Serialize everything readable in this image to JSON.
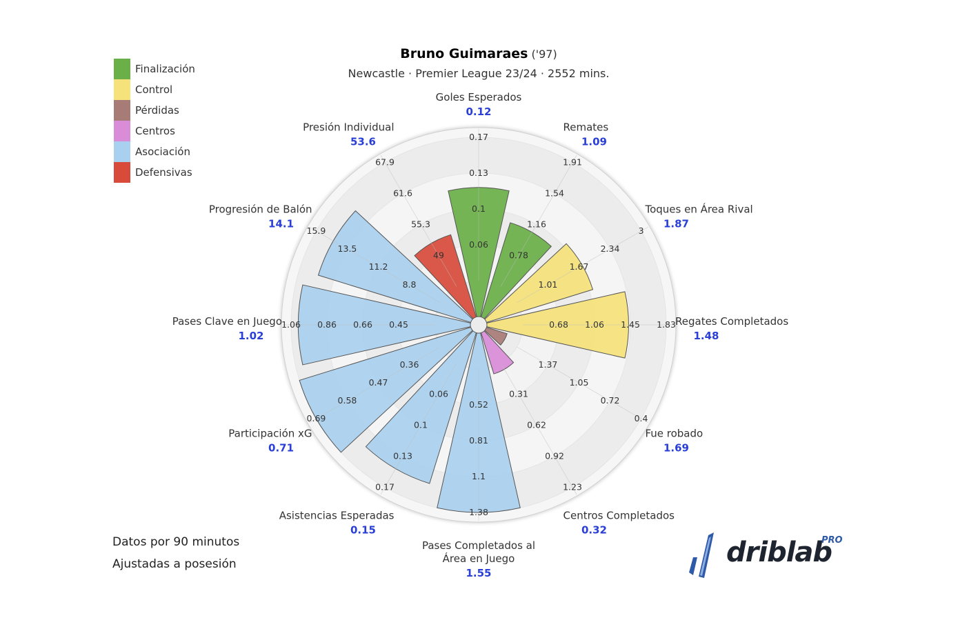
{
  "header": {
    "player_name": "Bruno Guimaraes",
    "birth_year": "('97)",
    "subtitle": "Newcastle · Premier League 23/24 · 2552 mins."
  },
  "legend": [
    {
      "label": "Finalización",
      "color": "#6aaf48"
    },
    {
      "label": "Control",
      "color": "#f5e27a"
    },
    {
      "label": "Pérdidas",
      "color": "#a77b76"
    },
    {
      "label": "Centros",
      "color": "#d98cd8"
    },
    {
      "label": "Asociación",
      "color": "#a9d0ef"
    },
    {
      "label": "Defensivas",
      "color": "#d84b3b"
    }
  ],
  "footnotes": {
    "line1": "Datos por 90 minutos",
    "line2": "Ajustadas a posesión"
  },
  "logo": {
    "text": "driblab",
    "badge": "PRO"
  },
  "chart_data": {
    "type": "polar-bar",
    "ring_fractions": [
      0.2,
      0.4,
      0.6,
      0.8,
      1.0
    ],
    "metrics": [
      {
        "name": "Goles Esperados",
        "value": "0.12",
        "group": "Finalización",
        "fill": 0.72,
        "ticks": [
          "0.06",
          "0.1",
          "0.13",
          "0.17"
        ]
      },
      {
        "name": "Remates",
        "value": "1.09",
        "group": "Finalización",
        "fill": 0.55,
        "ticks": [
          "0.78",
          "1.16",
          "1.54",
          "1.91"
        ]
      },
      {
        "name": "Toques en Área Rival",
        "value": "1.87",
        "group": "Control",
        "fill": 0.62,
        "ticks": [
          "1.01",
          "1.67",
          "2.34",
          "3"
        ]
      },
      {
        "name": "Regates Completados",
        "value": "1.48",
        "group": "Control",
        "fill": 0.79,
        "ticks": [
          "0.68",
          "1.06",
          "1.45",
          "1.83"
        ]
      },
      {
        "name": "Fue robado",
        "value": "1.69",
        "group": "Pérdidas",
        "fill": 0.12,
        "ticks": [
          "1.37",
          "1.05",
          "0.72",
          "0.4"
        ]
      },
      {
        "name": "Centros Completados",
        "value": "0.32",
        "group": "Centros",
        "fill": 0.24,
        "ticks": [
          "0.31",
          "0.62",
          "0.92",
          "1.23"
        ]
      },
      {
        "name": "Pases Completados al Área en Juego",
        "value": "1.55",
        "group": "Asociación",
        "fill": 1.0,
        "ticks": [
          "0.52",
          "0.81",
          "1.1",
          "1.38"
        ]
      },
      {
        "name": "Asistencias Esperadas",
        "value": "0.15",
        "group": "Asociación",
        "fill": 0.88,
        "ticks": [
          "0.06",
          "0.1",
          "0.13",
          "0.17"
        ]
      },
      {
        "name": "Participación xG",
        "value": "0.71",
        "group": "Asociación",
        "fill": 1.0,
        "ticks": [
          "0.36",
          "0.47",
          "0.58",
          "0.69"
        ]
      },
      {
        "name": "Pases Clave en Juego",
        "value": "1.02",
        "group": "Asociación",
        "fill": 0.96,
        "ticks": [
          "0.45",
          "0.66",
          "0.86",
          "1.06"
        ]
      },
      {
        "name": "Progresión de Balón",
        "value": "14.1",
        "group": "Asociación",
        "fill": 0.89,
        "ticks": [
          "8.8",
          "11.2",
          "13.5",
          "15.9"
        ]
      },
      {
        "name": "Presión Individual",
        "value": "53.6",
        "group": "Defensivas",
        "fill": 0.48,
        "ticks": [
          "49",
          "55.3",
          "61.6",
          "67.9"
        ]
      }
    ]
  }
}
